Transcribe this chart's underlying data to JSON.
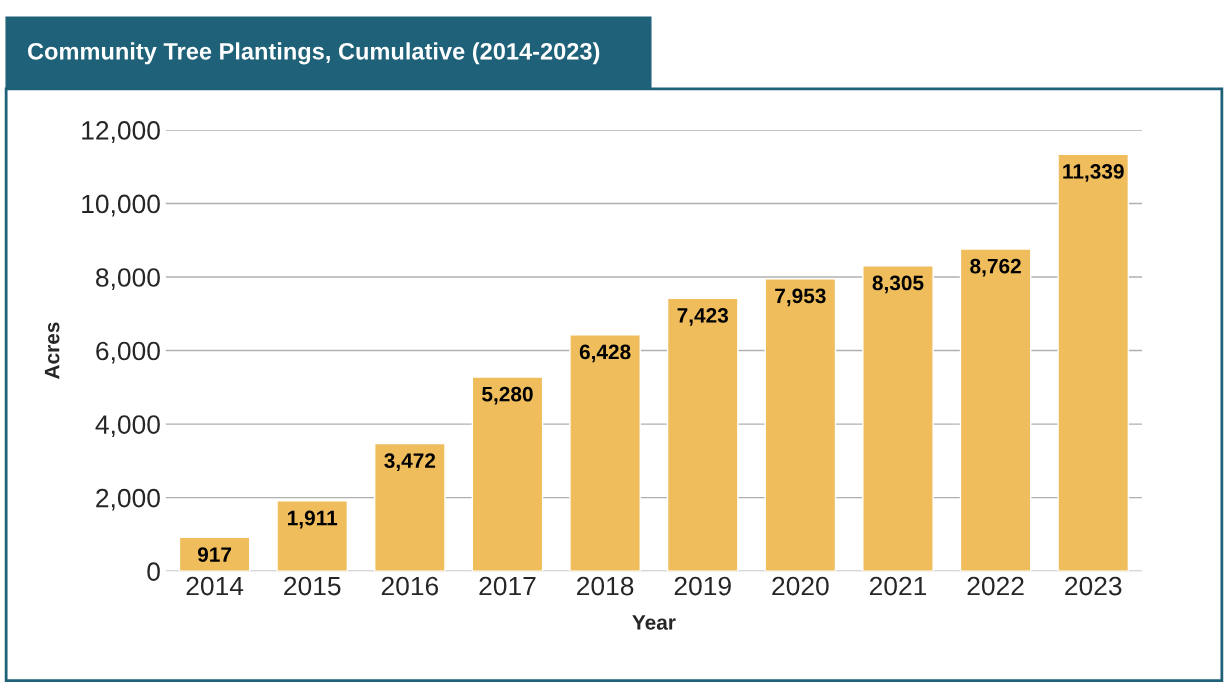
{
  "chart_data": {
    "type": "bar",
    "title": "Community Tree Plantings, Cumulative (2014-2023)",
    "xlabel": "Year",
    "ylabel": "Acres",
    "categories": [
      "2014",
      "2015",
      "2016",
      "2017",
      "2018",
      "2019",
      "2020",
      "2021",
      "2022",
      "2023"
    ],
    "values": [
      917,
      1911,
      3472,
      5280,
      6428,
      7423,
      7953,
      8305,
      8762,
      11339
    ],
    "color": "#efbd5c",
    "ylim": [
      0,
      12000
    ],
    "yticks": [
      {
        "value": 0,
        "label": "0"
      },
      {
        "value": 2000,
        "label": "2,000"
      },
      {
        "value": 4000,
        "label": "4,000"
      },
      {
        "value": 6000,
        "label": "6,000"
      },
      {
        "value": 8000,
        "label": "8,000"
      },
      {
        "value": 10000,
        "label": "10,000"
      },
      {
        "value": 12000,
        "label": "12,000"
      }
    ],
    "value_labels": [
      "917",
      "1,911",
      "3,472",
      "5,280",
      "6,428",
      "7,423",
      "7,953",
      "8,305",
      "8,762",
      "11,339"
    ],
    "grid": "y",
    "legend": false
  }
}
